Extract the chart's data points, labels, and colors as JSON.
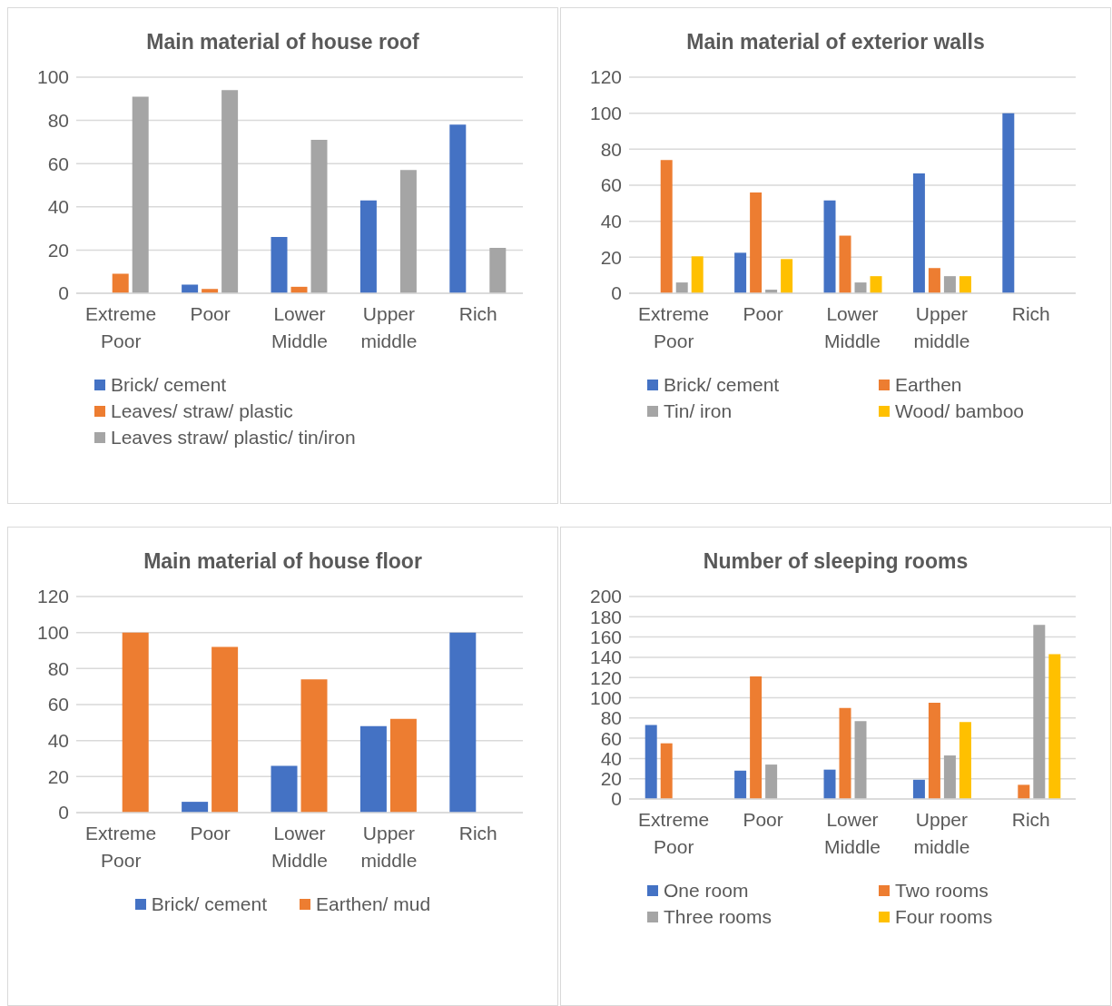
{
  "chart_data": [
    {
      "type": "bar",
      "title": "Main material of house roof",
      "categories": [
        "Extreme Poor",
        "Poor",
        "Lower Middle",
        "Upper middle",
        "Rich"
      ],
      "ylim": [
        0,
        100
      ],
      "yticks": [
        0,
        20,
        40,
        60,
        80,
        100
      ],
      "grid": "y",
      "legend": "bottom",
      "series": [
        {
          "name": "Brick/ cement",
          "color": "#4472c4",
          "values": [
            0,
            4,
            26,
            43,
            78
          ]
        },
        {
          "name": "Leaves/ straw/ plastic",
          "color": "#ed7d31",
          "values": [
            9,
            2,
            3,
            0,
            0
          ]
        },
        {
          "name": "Leaves straw/ plastic/ tin/iron",
          "color": "#a5a5a5",
          "values": [
            91,
            94,
            71,
            57,
            21
          ]
        }
      ]
    },
    {
      "type": "bar",
      "title": "Main material of exterior walls",
      "categories": [
        "Extreme Poor",
        "Poor",
        "Lower Middle",
        "Upper middle",
        "Rich"
      ],
      "ylim": [
        0,
        120
      ],
      "yticks": [
        0,
        20,
        40,
        60,
        80,
        100,
        120
      ],
      "grid": "y",
      "legend": "bottom",
      "series": [
        {
          "name": "Brick/ cement",
          "color": "#4472c4",
          "values": [
            0,
            22.5,
            51.5,
            66.5,
            100
          ]
        },
        {
          "name": "Earthen",
          "color": "#ed7d31",
          "values": [
            74,
            56,
            32,
            14,
            0
          ]
        },
        {
          "name": "Tin/ iron",
          "color": "#a5a5a5",
          "values": [
            6,
            2,
            6,
            9.5,
            0
          ]
        },
        {
          "name": "Wood/ bamboo",
          "color": "#ffc000",
          "values": [
            20.5,
            19,
            9.5,
            9.5,
            0
          ]
        }
      ]
    },
    {
      "type": "bar",
      "title": "Main material of house floor",
      "categories": [
        "Extreme Poor",
        "Poor",
        "Lower Middle",
        "Upper middle",
        "Rich"
      ],
      "ylim": [
        0,
        120
      ],
      "yticks": [
        0,
        20,
        40,
        60,
        80,
        100,
        120
      ],
      "grid": "y",
      "legend": "bottom",
      "series": [
        {
          "name": "Brick/ cement",
          "color": "#4472c4",
          "values": [
            0,
            6,
            26,
            48,
            100
          ]
        },
        {
          "name": "Earthen/ mud",
          "color": "#ed7d31",
          "values": [
            100,
            92,
            74,
            52,
            0
          ]
        }
      ]
    },
    {
      "type": "bar",
      "title": "Number of sleeping rooms",
      "categories": [
        "Extreme Poor",
        "Poor",
        "Lower Middle",
        "Upper middle",
        "Rich"
      ],
      "ylim": [
        0,
        200
      ],
      "yticks": [
        0,
        20,
        40,
        60,
        80,
        100,
        120,
        140,
        160,
        180,
        200
      ],
      "grid": "y",
      "legend": "bottom",
      "series": [
        {
          "name": "One room",
          "color": "#4472c4",
          "values": [
            73,
            28,
            29,
            19,
            0
          ]
        },
        {
          "name": "Two rooms",
          "color": "#ed7d31",
          "values": [
            55,
            121,
            90,
            95,
            14
          ]
        },
        {
          "name": "Three rooms",
          "color": "#a5a5a5",
          "values": [
            0,
            34,
            77,
            43,
            172
          ]
        },
        {
          "name": "Four rooms",
          "color": "#ffc000",
          "values": [
            0,
            0,
            0,
            76,
            143
          ]
        }
      ]
    }
  ]
}
